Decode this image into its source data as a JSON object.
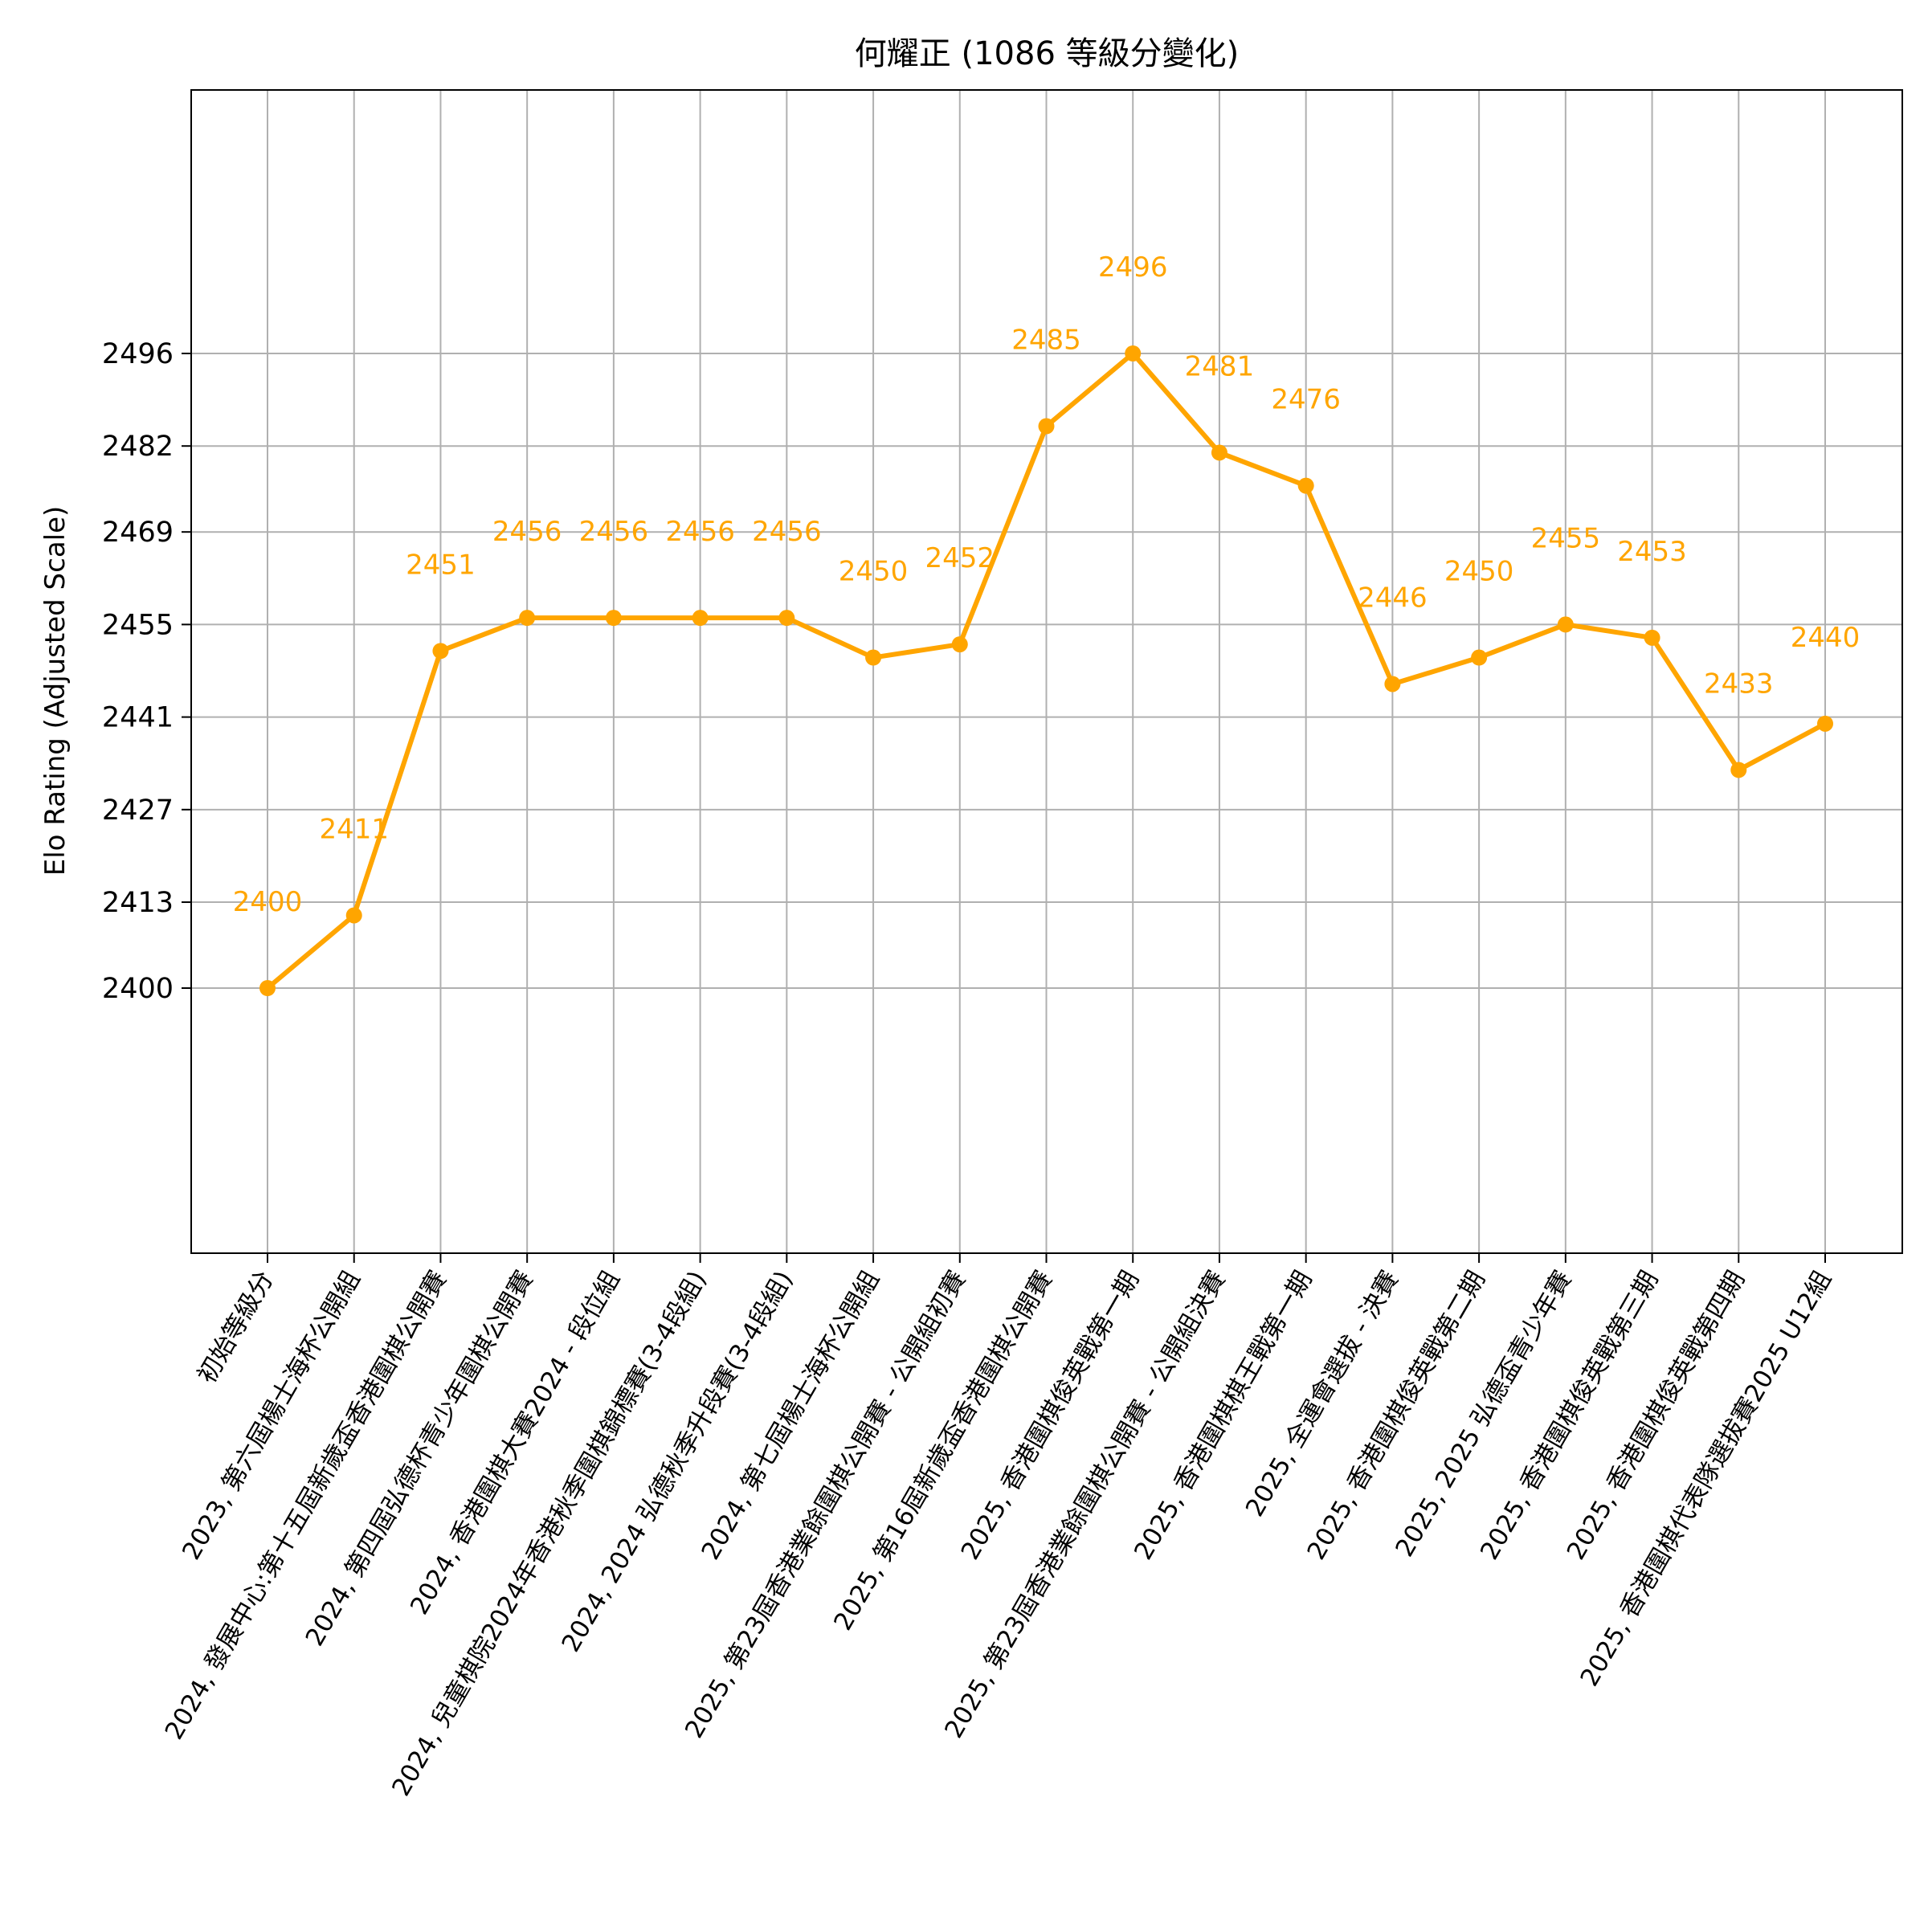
{
  "chart_data": {
    "type": "line",
    "title": "何耀正 (1086 等級分變化)",
    "xlabel": "",
    "ylabel": "Elo Rating (Adjusted Scale)",
    "ylim": [
      2360,
      2538
    ],
    "y_ticks": [
      2400,
      2413,
      2427,
      2441,
      2455,
      2469,
      2482,
      2496
    ],
    "grid": true,
    "line_color": "#FFA500",
    "label_color": "#FFA500",
    "categories": [
      "初始等級分",
      "2023, 第六屆楊士海杯公開組",
      "2024, 發展中心:第十五屆新歲盃香港圍棋公開賽",
      "2024, 第四屆弘德杯青少年圍棋公開賽",
      "2024, 香港圍棋大賽2024 - 段位組",
      "2024, 兒童棋院2024年香港秋季圍棋錦標賽(3-4段組)",
      "2024, 2024 弘德秋季升段賽(3-4段組)",
      "2024, 第七屆楊士海杯公開組",
      "2025, 第23屆香港業餘圍棋公開賽 - 公開組初賽",
      "2025, 第16屆新歲盃香港圍棋公開賽",
      "2025, 香港圍棋俊英戰第一期",
      "2025, 第23屆香港業餘圍棋公開賽 - 公開組決賽",
      "2025, 香港圍棋棋王戰第一期",
      "2025, 全運會選拔 - 決賽",
      "2025, 香港圍棋俊英戰第二期",
      "2025, 2025 弘德盃青少年賽",
      "2025, 香港圍棋俊英戰第三期",
      "2025, 香港圍棋俊英戰第四期",
      "2025, 香港圍棋代表隊選拔賽2025 U12組"
    ],
    "values": [
      2400,
      2411,
      2451,
      2456,
      2456,
      2456,
      2456,
      2450,
      2452,
      2485,
      2496,
      2481,
      2476,
      2446,
      2450,
      2455,
      2453,
      2433,
      2440
    ],
    "point_labels": [
      "2400",
      "2411",
      "2451",
      "2456",
      "2456",
      "2456",
      "2456",
      "2450",
      "2452",
      "2485",
      "2496",
      "2481",
      "2476",
      "2446",
      "2450",
      "2455",
      "2453",
      "2433",
      "2440"
    ]
  }
}
